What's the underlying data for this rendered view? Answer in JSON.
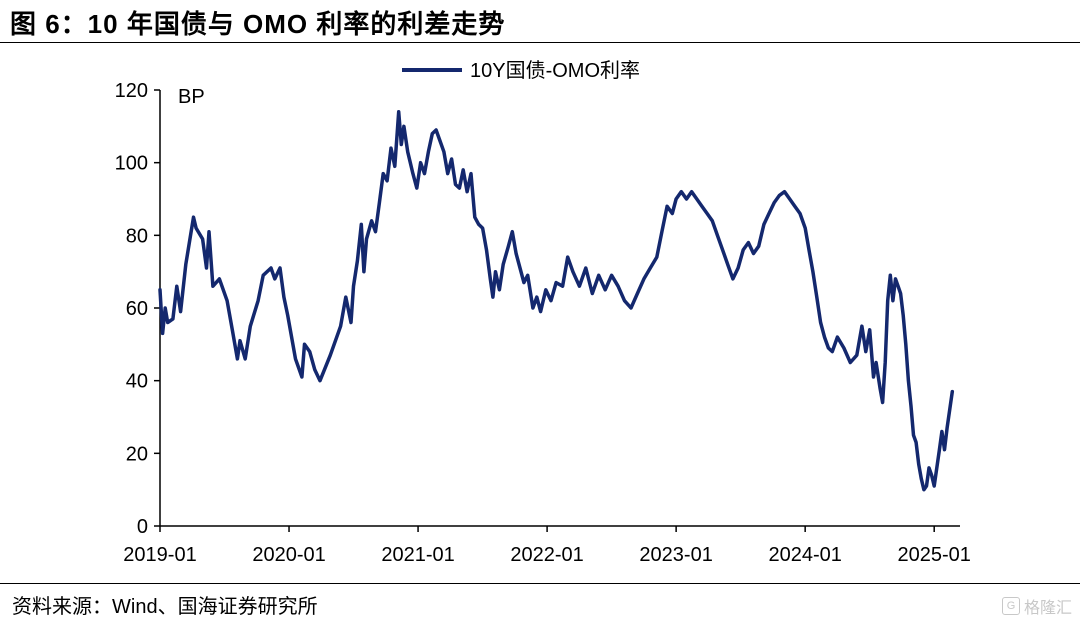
{
  "header": {
    "title": "图 6：10 年国债与 OMO 利率的利差走势"
  },
  "footer": {
    "source": "资料来源：Wind、国海证券研究所",
    "watermark": "格隆汇"
  },
  "colors": {
    "series": "#14286e",
    "axis": "#000000"
  },
  "chart_data": {
    "type": "line",
    "title": "",
    "unit_label": "BP",
    "ylim": [
      0,
      120
    ],
    "yticks": [
      0,
      20,
      40,
      60,
      80,
      100,
      120
    ],
    "xlim": [
      2019.0,
      2025.2
    ],
    "xticks": [
      {
        "pos": 2019.0,
        "label": "2019-01"
      },
      {
        "pos": 2020.0,
        "label": "2020-01"
      },
      {
        "pos": 2021.0,
        "label": "2021-01"
      },
      {
        "pos": 2022.0,
        "label": "2022-01"
      },
      {
        "pos": 2023.0,
        "label": "2023-01"
      },
      {
        "pos": 2024.0,
        "label": "2024-01"
      },
      {
        "pos": 2025.0,
        "label": "2025-01"
      }
    ],
    "legend": {
      "position": "top-center",
      "entries": [
        "10Y国债-OMO利率"
      ]
    },
    "grid": false,
    "series": [
      {
        "name": "10Y国债-OMO利率",
        "points": [
          [
            2019.0,
            65
          ],
          [
            2019.02,
            53
          ],
          [
            2019.04,
            60
          ],
          [
            2019.06,
            56
          ],
          [
            2019.1,
            57
          ],
          [
            2019.13,
            66
          ],
          [
            2019.16,
            59
          ],
          [
            2019.2,
            72
          ],
          [
            2019.26,
            85
          ],
          [
            2019.28,
            82
          ],
          [
            2019.33,
            79
          ],
          [
            2019.36,
            71
          ],
          [
            2019.38,
            81
          ],
          [
            2019.41,
            66
          ],
          [
            2019.46,
            68
          ],
          [
            2019.52,
            62
          ],
          [
            2019.56,
            54
          ],
          [
            2019.6,
            46
          ],
          [
            2019.62,
            51
          ],
          [
            2019.66,
            46
          ],
          [
            2019.7,
            55
          ],
          [
            2019.76,
            62
          ],
          [
            2019.8,
            69
          ],
          [
            2019.86,
            71
          ],
          [
            2019.89,
            68
          ],
          [
            2019.93,
            71
          ],
          [
            2019.96,
            63
          ],
          [
            2019.99,
            58
          ],
          [
            2020.05,
            46
          ],
          [
            2020.1,
            41
          ],
          [
            2020.12,
            50
          ],
          [
            2020.16,
            48
          ],
          [
            2020.2,
            43
          ],
          [
            2020.24,
            40
          ],
          [
            2020.32,
            47
          ],
          [
            2020.4,
            55
          ],
          [
            2020.44,
            63
          ],
          [
            2020.48,
            56
          ],
          [
            2020.5,
            66
          ],
          [
            2020.53,
            73
          ],
          [
            2020.56,
            83
          ],
          [
            2020.58,
            70
          ],
          [
            2020.6,
            79
          ],
          [
            2020.64,
            84
          ],
          [
            2020.67,
            81
          ],
          [
            2020.7,
            89
          ],
          [
            2020.73,
            97
          ],
          [
            2020.76,
            95
          ],
          [
            2020.79,
            104
          ],
          [
            2020.82,
            99
          ],
          [
            2020.85,
            114
          ],
          [
            2020.87,
            105
          ],
          [
            2020.89,
            110
          ],
          [
            2020.92,
            103
          ],
          [
            2020.94,
            100
          ],
          [
            2020.96,
            97
          ],
          [
            2020.99,
            93
          ],
          [
            2021.02,
            100
          ],
          [
            2021.05,
            97
          ],
          [
            2021.08,
            103
          ],
          [
            2021.11,
            108
          ],
          [
            2021.14,
            109
          ],
          [
            2021.17,
            106
          ],
          [
            2021.2,
            103
          ],
          [
            2021.23,
            97
          ],
          [
            2021.26,
            101
          ],
          [
            2021.29,
            94
          ],
          [
            2021.32,
            93
          ],
          [
            2021.35,
            98
          ],
          [
            2021.38,
            92
          ],
          [
            2021.41,
            97
          ],
          [
            2021.44,
            85
          ],
          [
            2021.47,
            83
          ],
          [
            2021.5,
            82
          ],
          [
            2021.53,
            76
          ],
          [
            2021.56,
            68
          ],
          [
            2021.58,
            63
          ],
          [
            2021.6,
            70
          ],
          [
            2021.63,
            65
          ],
          [
            2021.66,
            72
          ],
          [
            2021.7,
            77
          ],
          [
            2021.73,
            81
          ],
          [
            2021.76,
            75
          ],
          [
            2021.79,
            71
          ],
          [
            2021.82,
            67
          ],
          [
            2021.85,
            69
          ],
          [
            2021.89,
            60
          ],
          [
            2021.92,
            63
          ],
          [
            2021.95,
            59
          ],
          [
            2021.99,
            65
          ],
          [
            2022.03,
            62
          ],
          [
            2022.07,
            67
          ],
          [
            2022.12,
            66
          ],
          [
            2022.16,
            74
          ],
          [
            2022.2,
            70
          ],
          [
            2022.25,
            66
          ],
          [
            2022.3,
            71
          ],
          [
            2022.35,
            64
          ],
          [
            2022.4,
            69
          ],
          [
            2022.45,
            65
          ],
          [
            2022.5,
            69
          ],
          [
            2022.55,
            66
          ],
          [
            2022.6,
            62
          ],
          [
            2022.65,
            60
          ],
          [
            2022.7,
            64
          ],
          [
            2022.75,
            68
          ],
          [
            2022.8,
            71
          ],
          [
            2022.85,
            74
          ],
          [
            2022.89,
            81
          ],
          [
            2022.93,
            88
          ],
          [
            2022.97,
            86
          ],
          [
            2023.0,
            90
          ],
          [
            2023.04,
            92
          ],
          [
            2023.08,
            90
          ],
          [
            2023.12,
            92
          ],
          [
            2023.16,
            90
          ],
          [
            2023.2,
            88
          ],
          [
            2023.24,
            86
          ],
          [
            2023.28,
            84
          ],
          [
            2023.32,
            80
          ],
          [
            2023.36,
            76
          ],
          [
            2023.4,
            72
          ],
          [
            2023.44,
            68
          ],
          [
            2023.48,
            71
          ],
          [
            2023.52,
            76
          ],
          [
            2023.56,
            78
          ],
          [
            2023.6,
            75
          ],
          [
            2023.64,
            77
          ],
          [
            2023.68,
            83
          ],
          [
            2023.72,
            86
          ],
          [
            2023.76,
            89
          ],
          [
            2023.8,
            91
          ],
          [
            2023.84,
            92
          ],
          [
            2023.88,
            90
          ],
          [
            2023.92,
            88
          ],
          [
            2023.96,
            86
          ],
          [
            2024.0,
            82
          ],
          [
            2024.03,
            76
          ],
          [
            2024.06,
            70
          ],
          [
            2024.09,
            63
          ],
          [
            2024.12,
            56
          ],
          [
            2024.15,
            52
          ],
          [
            2024.18,
            49
          ],
          [
            2024.21,
            48
          ],
          [
            2024.25,
            52
          ],
          [
            2024.3,
            49
          ],
          [
            2024.35,
            45
          ],
          [
            2024.4,
            47
          ],
          [
            2024.44,
            55
          ],
          [
            2024.47,
            48
          ],
          [
            2024.5,
            54
          ],
          [
            2024.53,
            41
          ],
          [
            2024.55,
            45
          ],
          [
            2024.58,
            38
          ],
          [
            2024.6,
            34
          ],
          [
            2024.62,
            45
          ],
          [
            2024.64,
            62
          ],
          [
            2024.66,
            69
          ],
          [
            2024.68,
            62
          ],
          [
            2024.7,
            68
          ],
          [
            2024.72,
            66
          ],
          [
            2024.74,
            64
          ],
          [
            2024.76,
            58
          ],
          [
            2024.78,
            50
          ],
          [
            2024.8,
            40
          ],
          [
            2024.82,
            33
          ],
          [
            2024.84,
            25
          ],
          [
            2024.86,
            23
          ],
          [
            2024.88,
            17
          ],
          [
            2024.9,
            13
          ],
          [
            2024.92,
            10
          ],
          [
            2024.94,
            11
          ],
          [
            2024.96,
            16
          ],
          [
            2024.98,
            14
          ],
          [
            2025.0,
            11
          ],
          [
            2025.02,
            16
          ],
          [
            2025.04,
            21
          ],
          [
            2025.06,
            26
          ],
          [
            2025.08,
            21
          ],
          [
            2025.1,
            27
          ],
          [
            2025.12,
            32
          ],
          [
            2025.14,
            37
          ]
        ]
      }
    ]
  }
}
